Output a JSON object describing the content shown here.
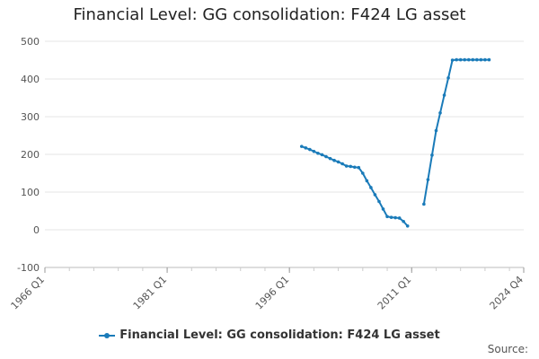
{
  "chart_data": {
    "type": "line",
    "title": "Financial Level: GG consolidation: F424 LG asset",
    "xlabel": "",
    "ylabel": "",
    "ylim": [
      -100,
      500
    ],
    "yticks": [
      500,
      400,
      300,
      200,
      100,
      0,
      -100
    ],
    "xticks": [
      "1966 Q1",
      "1981 Q1",
      "1996 Q1",
      "2011 Q1",
      "2024 Q4"
    ],
    "grid": true,
    "legend_position": "bottom",
    "series": [
      {
        "name": "Financial Level: GG consolidation: F424 LG asset",
        "color": "#1a7bb9",
        "segments": [
          [
            [
              "1997 Q3",
              221
            ],
            [
              "1998 Q1",
              217
            ],
            [
              "1998 Q3",
              213
            ],
            [
              "1999 Q1",
              208
            ],
            [
              "1999 Q3",
              203
            ],
            [
              "2000 Q1",
              199
            ],
            [
              "2000 Q3",
              194
            ],
            [
              "2001 Q1",
              189
            ],
            [
              "2001 Q3",
              184
            ],
            [
              "2002 Q1",
              180
            ],
            [
              "2002 Q3",
              175
            ],
            [
              "2003 Q1",
              169
            ],
            [
              "2003 Q3",
              168
            ],
            [
              "2004 Q1",
              166
            ],
            [
              "2004 Q3",
              165
            ],
            [
              "2005 Q1",
              150
            ],
            [
              "2005 Q3",
              130
            ],
            [
              "2006 Q1",
              112
            ],
            [
              "2006 Q3",
              93
            ],
            [
              "2007 Q1",
              75
            ],
            [
              "2007 Q3",
              55
            ],
            [
              "2008 Q1",
              35
            ],
            [
              "2008 Q3",
              33
            ],
            [
              "2009 Q1",
              32
            ],
            [
              "2009 Q3",
              31
            ],
            [
              "2010 Q1",
              22
            ],
            [
              "2010 Q3",
              10
            ]
          ],
          [
            [
              "2012 Q3",
              68
            ],
            [
              "2013 Q1",
              133
            ],
            [
              "2013 Q3",
              198
            ],
            [
              "2014 Q1",
              263
            ],
            [
              "2014 Q3",
              310
            ],
            [
              "2015 Q1",
              357
            ],
            [
              "2015 Q3",
              403
            ],
            [
              "2016 Q1",
              450
            ],
            [
              "2016 Q3",
              451
            ],
            [
              "2017 Q1",
              451
            ],
            [
              "2017 Q3",
              451
            ],
            [
              "2018 Q1",
              451
            ],
            [
              "2018 Q3",
              451
            ],
            [
              "2019 Q1",
              451
            ],
            [
              "2019 Q3",
              451
            ],
            [
              "2020 Q1",
              451
            ],
            [
              "2020 Q3",
              451
            ]
          ]
        ]
      }
    ]
  },
  "legend": {
    "label": "Financial Level: GG consolidation: F424 LG asset"
  },
  "source": {
    "label": "Source:"
  }
}
